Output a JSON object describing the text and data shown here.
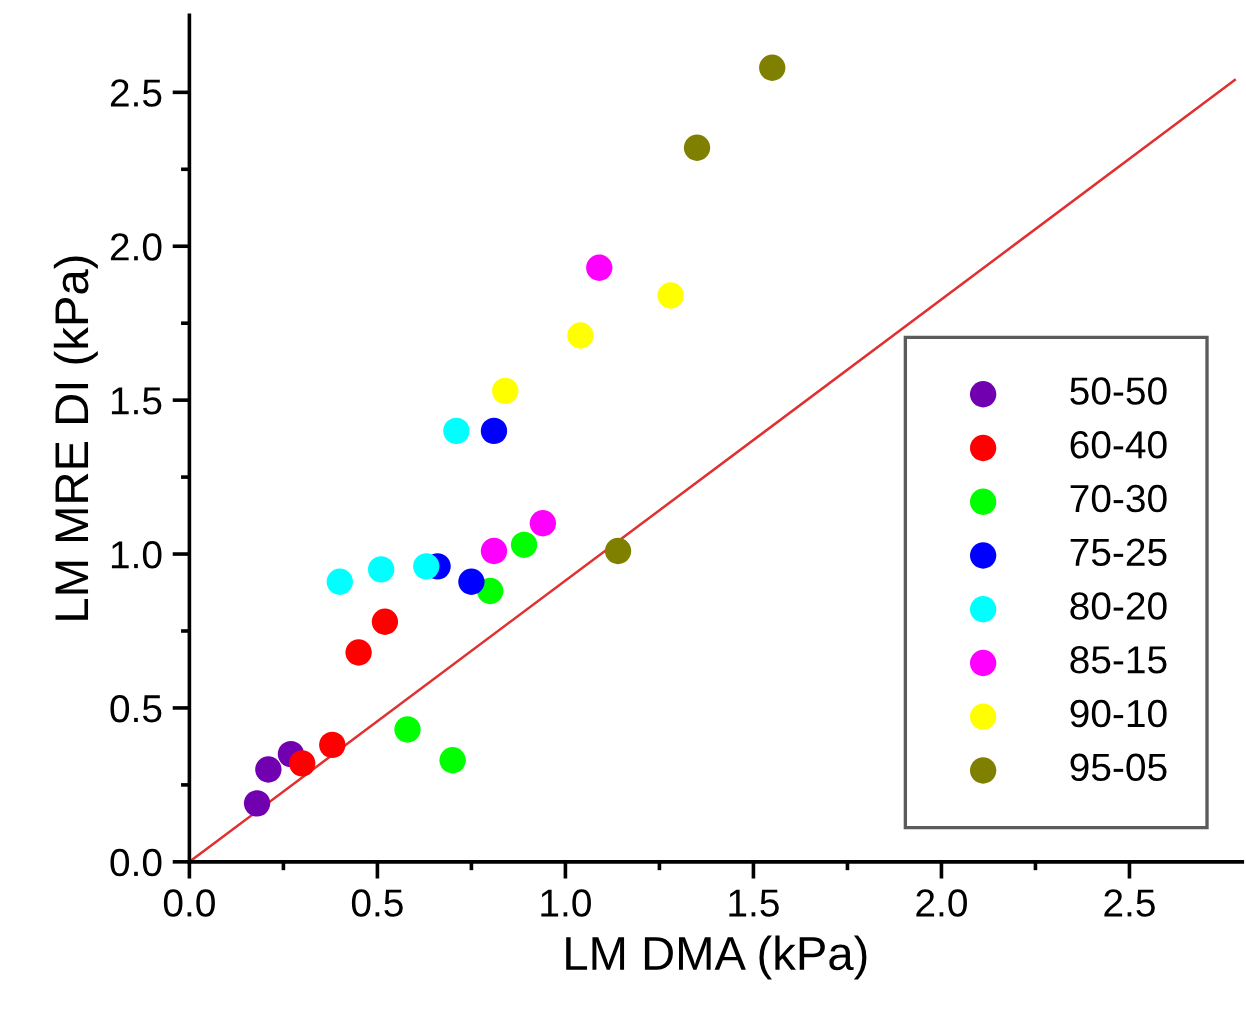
{
  "chart_data": {
    "type": "scatter",
    "xlabel": "LM DMA (kPa)",
    "ylabel": "LM MRE DI (kPa)",
    "xlim": [
      0,
      2.8
    ],
    "ylim": [
      0,
      2.75
    ],
    "xticks": [
      {
        "value": 0,
        "label": "0.0"
      },
      0.5,
      {
        "value": 1,
        "label": "1.0"
      },
      1.5,
      {
        "value": 2,
        "label": "2.0"
      },
      2.5
    ],
    "yticks": [
      {
        "value": 0,
        "label": "0.0"
      },
      0.5,
      {
        "value": 1,
        "label": "1.0"
      },
      1.5,
      {
        "value": 2,
        "label": "2.0"
      },
      2.5
    ],
    "grid": false,
    "legend": "right",
    "marker": "circle",
    "series": [
      {
        "name": "50-50",
        "color": "#7000b0",
        "x": [
          0.18,
          0.21,
          0.27
        ],
        "values": [
          0.19,
          0.3,
          0.35
        ]
      },
      {
        "name": "60-40",
        "color": "#ff0000",
        "x": [
          0.3,
          0.38,
          0.45,
          0.52
        ],
        "values": [
          0.32,
          0.38,
          0.68,
          0.78
        ]
      },
      {
        "name": "70-30",
        "color": "#00ff00",
        "x": [
          0.58,
          0.7,
          0.8,
          0.89
        ],
        "values": [
          0.43,
          0.33,
          0.88,
          1.03
        ]
      },
      {
        "name": "75-25",
        "color": "#0000ff",
        "x": [
          0.66,
          0.75,
          0.81
        ],
        "values": [
          0.96,
          0.91,
          1.4
        ]
      },
      {
        "name": "80-20",
        "color": "#00ffff",
        "x": [
          0.4,
          0.51,
          0.63,
          0.71
        ],
        "values": [
          0.91,
          0.95,
          0.96,
          1.4
        ]
      },
      {
        "name": "85-15",
        "color": "#ff00ff",
        "x": [
          0.81,
          0.94,
          1.09
        ],
        "values": [
          1.01,
          1.1,
          1.93
        ]
      },
      {
        "name": "90-10",
        "color": "#ffff00",
        "x": [
          0.84,
          1.04,
          1.28
        ],
        "values": [
          1.53,
          1.71,
          1.84
        ]
      },
      {
        "name": "95-05",
        "color": "#808000",
        "x": [
          1.14,
          1.35,
          1.55
        ],
        "values": [
          1.01,
          2.32,
          2.58
        ]
      },
      {
        "type": "line",
        "color": "#e03030",
        "x": [
          0,
          2.78
        ],
        "values": [
          0,
          2.54
        ],
        "line_style": "solid",
        "marker": "none"
      }
    ]
  }
}
